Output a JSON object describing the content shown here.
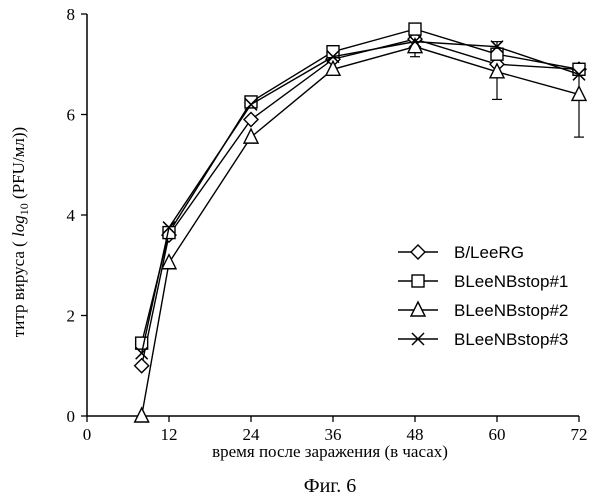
{
  "chart_data": {
    "type": "line",
    "title": "",
    "xlabel": "время после заражения (в часах)",
    "ylabel_main": "титр вируса ( ",
    "ylabel_log": "log",
    "ylabel_sub": "10",
    "ylabel_unit": " (PFU/мл))",
    "xlim": [
      0,
      72
    ],
    "ylim": [
      0,
      8
    ],
    "xticks": [
      0,
      12,
      24,
      36,
      48,
      60,
      72
    ],
    "yticks": [
      0,
      2,
      4,
      6,
      8
    ],
    "xtick_labels": [
      "0",
      "12",
      "24",
      "36",
      "48",
      "60",
      "72"
    ],
    "ytick_labels": [
      "0",
      "2",
      "4",
      "6",
      "8"
    ],
    "grid": false,
    "legend_position": "right-middle",
    "caption": "Фиг. 6",
    "series": [
      {
        "name": "B/LeeRG",
        "marker": "diamond",
        "x": [
          8,
          12,
          24,
          36,
          48,
          60,
          72
        ],
        "y": [
          1.0,
          3.6,
          5.9,
          7.1,
          7.5,
          7.0,
          6.9
        ]
      },
      {
        "name": "BLeeNBstop#1",
        "marker": "square",
        "x": [
          8,
          12,
          24,
          36,
          48,
          60,
          72
        ],
        "y": [
          1.45,
          3.65,
          6.25,
          7.25,
          7.7,
          7.2,
          6.9
        ]
      },
      {
        "name": "BLeeNBstop#2",
        "marker": "triangle",
        "x": [
          8,
          12,
          24,
          36,
          48,
          60,
          72
        ],
        "y": [
          0.0,
          3.05,
          5.55,
          6.9,
          7.35,
          6.85,
          6.4
        ]
      },
      {
        "name": "BLeeNBstop#3",
        "marker": "x",
        "x": [
          8,
          12,
          24,
          36,
          48,
          60,
          72
        ],
        "y": [
          1.25,
          3.75,
          6.2,
          7.15,
          7.45,
          7.35,
          6.8
        ]
      }
    ],
    "error_bars": [
      {
        "x": 48,
        "low": 7.15,
        "high": 7.65
      },
      {
        "x": 60,
        "low": 6.3,
        "high": 7.45
      },
      {
        "x": 72,
        "low": 5.55,
        "high": 7.0
      }
    ]
  }
}
